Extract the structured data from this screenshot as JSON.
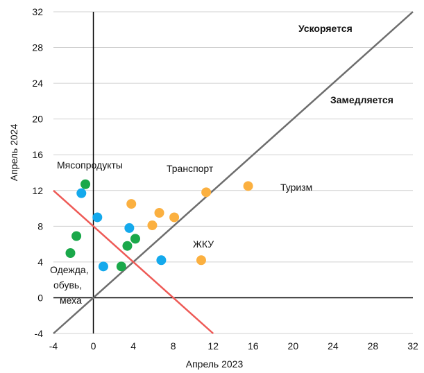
{
  "chart_data": {
    "type": "scatter",
    "title": "",
    "xlabel": "Апрель 2023",
    "ylabel": "Апрель 2024",
    "xlim": [
      -4,
      32
    ],
    "ylim": [
      -4,
      32
    ],
    "x_ticks": [
      -4,
      0,
      4,
      8,
      12,
      16,
      20,
      24,
      28,
      32
    ],
    "y_ticks": [
      -4,
      0,
      4,
      8,
      12,
      16,
      20,
      24,
      28,
      32
    ],
    "x_tick_labels": [
      "-4",
      "0",
      "4",
      "8",
      "12",
      "16",
      "20",
      "24",
      "28",
      "32"
    ],
    "y_tick_labels": [
      "-4",
      "0",
      "4",
      "8",
      "12",
      "16",
      "20",
      "24",
      "28",
      "32"
    ],
    "grid": "horizontal",
    "colors": {
      "green": "#1aa84a",
      "blue": "#14a9ec",
      "orange": "#fbb040",
      "diagonal": "#6d6d6d",
      "red_line": "#ee5a56",
      "grid": "#d0d0d0"
    },
    "series": [
      {
        "color": "#1aa84a",
        "points": [
          [
            -0.8,
            12.7
          ],
          [
            -1.7,
            6.9
          ],
          [
            -2.3,
            5.0
          ],
          [
            3.4,
            5.8
          ],
          [
            4.2,
            6.6
          ],
          [
            2.8,
            3.5
          ]
        ]
      },
      {
        "color": "#14a9ec",
        "points": [
          [
            -1.2,
            11.7
          ],
          [
            0.4,
            9.0
          ],
          [
            3.6,
            7.8
          ],
          [
            1.0,
            3.5
          ],
          [
            6.8,
            4.2
          ]
        ]
      },
      {
        "color": "#fbb040",
        "points": [
          [
            3.8,
            10.5
          ],
          [
            6.6,
            9.5
          ],
          [
            5.9,
            8.1
          ],
          [
            8.1,
            9.0
          ],
          [
            11.3,
            11.8
          ],
          [
            15.5,
            12.5
          ],
          [
            10.8,
            4.2
          ]
        ]
      }
    ],
    "lines": [
      {
        "color": "#6d6d6d",
        "from": [
          -4,
          -4
        ],
        "to": [
          32,
          32
        ]
      },
      {
        "color": "#ee5a56",
        "from": [
          -4,
          12
        ],
        "to": [
          12,
          -4
        ]
      }
    ],
    "annotations": {
      "accelerates": "Ускоряется",
      "decelerates": "Замедляется",
      "meat": "Мясопродукты",
      "transport": "Транспорт",
      "tourism": "Туризм",
      "housing": "ЖКУ",
      "clothes_line1": "Одежда,",
      "clothes_line2": "обувь,",
      "clothes_line3": "меха"
    }
  }
}
